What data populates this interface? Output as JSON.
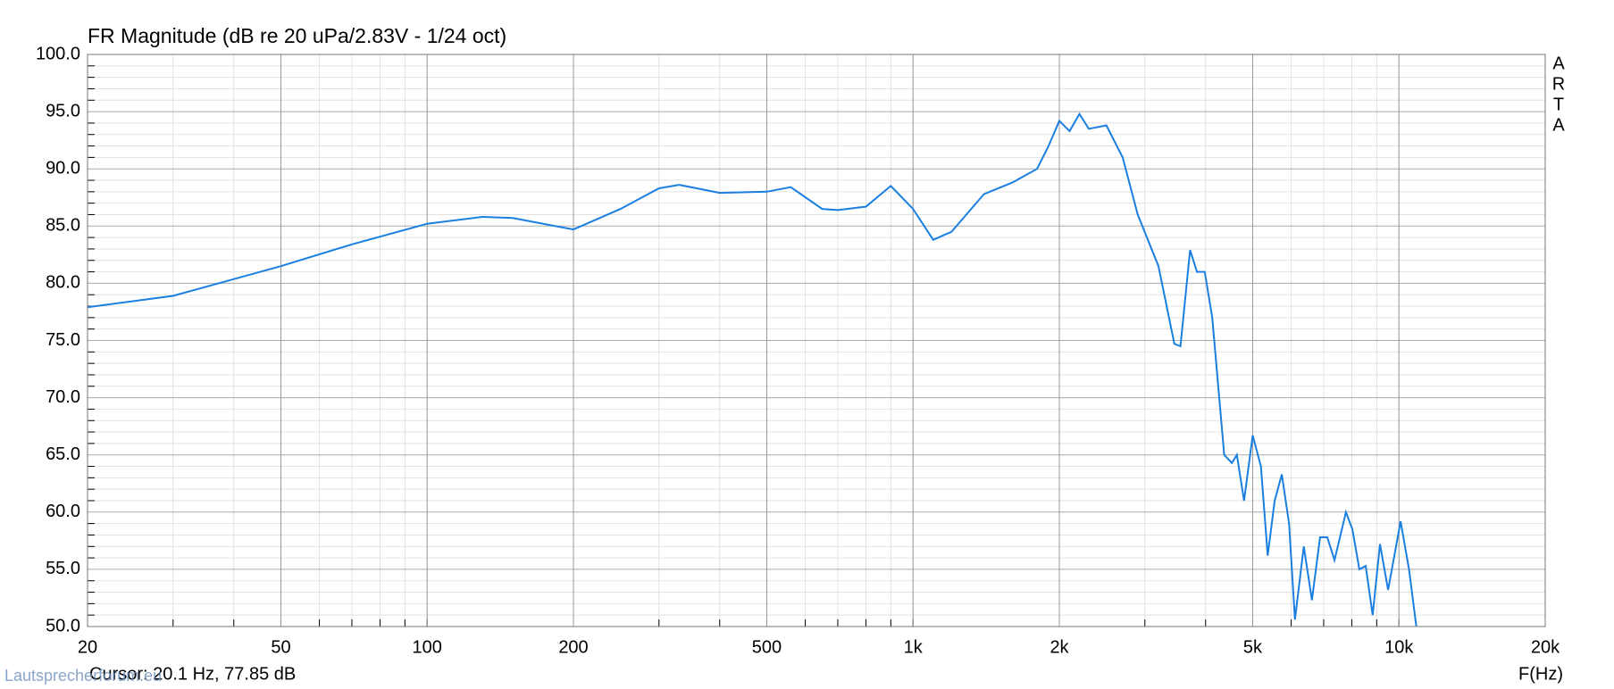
{
  "chart_data": {
    "type": "line",
    "title": "FR Magnitude (dB re 20 uPa/2.83V - 1/24 oct)",
    "x_label": "F(Hz)",
    "side_label": "ARTA",
    "cursor": "Cursor: 20.1 Hz, 77.85 dB",
    "watermark": "Lautsprecherforum.eu",
    "log_x": true,
    "grid": true,
    "xlim": [
      20,
      20000
    ],
    "xticks": [
      20,
      50,
      100,
      200,
      500,
      {
        "value": 1000,
        "label": "1k"
      },
      {
        "value": 2000,
        "label": "2k"
      },
      {
        "value": 5000,
        "label": "5k"
      },
      {
        "value": 10000,
        "label": "10k"
      },
      {
        "value": 20000,
        "label": "20k"
      }
    ],
    "ylim": [
      50,
      100
    ],
    "yticks": [
      {
        "value": 50,
        "label": "50.0"
      },
      {
        "value": 55,
        "label": "55.0"
      },
      {
        "value": 60,
        "label": "60.0"
      },
      {
        "value": 65,
        "label": "65.0"
      },
      {
        "value": 70,
        "label": "70.0"
      },
      {
        "value": 75,
        "label": "75.0"
      },
      {
        "value": 80,
        "label": "80.0"
      },
      {
        "value": 85,
        "label": "85.0"
      },
      {
        "value": 90,
        "label": "90.0"
      },
      {
        "value": 95,
        "label": "95.0"
      },
      {
        "value": 100,
        "label": "100.0"
      }
    ],
    "x": [
      20,
      30,
      50,
      70,
      100,
      130,
      150,
      200,
      250,
      300,
      330,
      400,
      500,
      560,
      650,
      700,
      800,
      900,
      1000,
      1100,
      1200,
      1400,
      1600,
      1800,
      1900,
      2000,
      2100,
      2200,
      2300,
      2500,
      2700,
      2900,
      3200,
      3450,
      3550,
      3716,
      3840,
      3983,
      4128,
      4369,
      4530,
      4640,
      4800,
      5000,
      5200,
      5370,
      5550,
      5740,
      5940,
      6110,
      6370,
      6620,
      6880,
      7120,
      7370,
      7780,
      8020,
      8290,
      8540,
      8830,
      9140,
      9500,
      10080,
      10490,
      10860
    ],
    "series": [
      {
        "color": "#1a7fe0",
        "values": [
          77.9,
          78.9,
          81.5,
          83.4,
          85.2,
          85.8,
          85.7,
          84.7,
          86.5,
          88.3,
          88.6,
          87.9,
          88.0,
          88.4,
          86.5,
          86.4,
          86.7,
          88.5,
          86.5,
          83.8,
          84.5,
          87.8,
          88.8,
          90.0,
          92.0,
          94.2,
          93.3,
          94.8,
          93.5,
          93.8,
          91.0,
          86.0,
          81.5,
          74.7,
          74.5,
          82.9,
          81.0,
          81.0,
          77.0,
          65.0,
          64.3,
          65.0,
          61.0,
          66.7,
          64.0,
          56.2,
          61.0,
          63.3,
          59.0,
          50.6,
          57.0,
          52.3,
          57.8,
          57.8,
          55.8,
          60.0,
          58.5,
          55.0,
          55.3,
          51.0,
          57.2,
          53.2,
          59.2,
          55.0,
          50.0
        ]
      }
    ]
  }
}
